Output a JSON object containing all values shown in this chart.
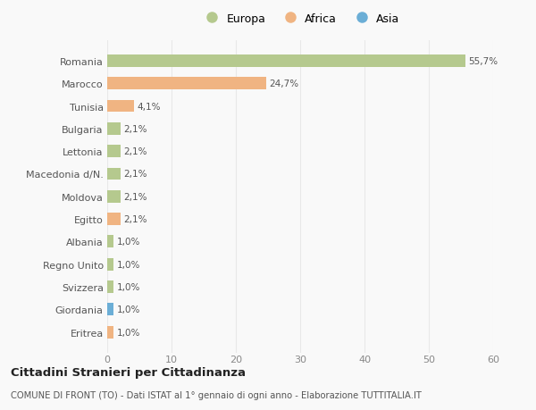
{
  "categories": [
    "Romania",
    "Marocco",
    "Tunisia",
    "Bulgaria",
    "Lettonia",
    "Macedonia d/N.",
    "Moldova",
    "Egitto",
    "Albania",
    "Regno Unito",
    "Svizzera",
    "Giordania",
    "Eritrea"
  ],
  "values": [
    55.7,
    24.7,
    4.1,
    2.1,
    2.1,
    2.1,
    2.1,
    2.1,
    1.0,
    1.0,
    1.0,
    1.0,
    1.0
  ],
  "labels": [
    "55,7%",
    "24,7%",
    "4,1%",
    "2,1%",
    "2,1%",
    "2,1%",
    "2,1%",
    "2,1%",
    "1,0%",
    "1,0%",
    "1,0%",
    "1,0%",
    "1,0%"
  ],
  "colors": [
    "#b5c98e",
    "#f0b482",
    "#f0b482",
    "#b5c98e",
    "#b5c98e",
    "#b5c98e",
    "#b5c98e",
    "#f0b482",
    "#b5c98e",
    "#b5c98e",
    "#b5c98e",
    "#6baed6",
    "#f0b482"
  ],
  "legend_labels": [
    "Europa",
    "Africa",
    "Asia"
  ],
  "legend_colors": [
    "#b5c98e",
    "#f0b482",
    "#6baed6"
  ],
  "title": "Cittadini Stranieri per Cittadinanza",
  "subtitle": "COMUNE DI FRONT (TO) - Dati ISTAT al 1° gennaio di ogni anno - Elaborazione TUTTITALIA.IT",
  "xlim": [
    0,
    60
  ],
  "xticks": [
    0,
    10,
    20,
    30,
    40,
    50,
    60
  ],
  "bg_color": "#f9f9f9",
  "grid_color": "#e8e8e8",
  "bar_height": 0.55
}
